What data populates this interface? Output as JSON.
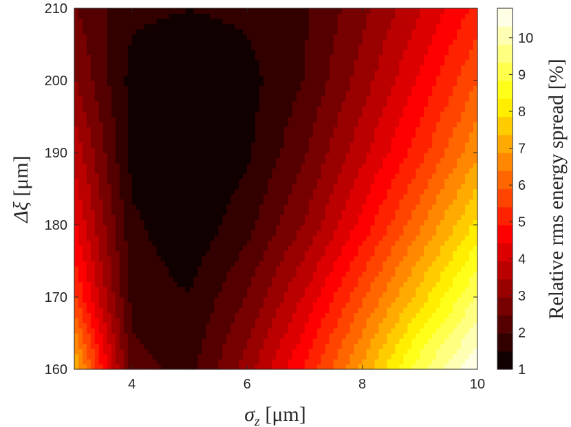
{
  "chart_data": {
    "type": "contourf",
    "xlabel": {
      "symbol": "σ",
      "subscript": "z",
      "unit": " [μm]"
    },
    "ylabel": {
      "symbol": "Δξ",
      "unit": " [μm]"
    },
    "colorbar_label": "Relative rms energy spread [%]",
    "x": [
      3,
      4,
      5,
      6,
      7,
      8,
      9,
      10
    ],
    "y": [
      160,
      170,
      180,
      190,
      200,
      210
    ],
    "z": [
      [
        7.5,
        2.2,
        1.8,
        3.2,
        5.0,
        7.0,
        9.2,
        10.8
      ],
      [
        5.5,
        1.8,
        1.5,
        2.5,
        4.0,
        5.8,
        7.6,
        9.4
      ],
      [
        4.5,
        1.6,
        1.1,
        1.8,
        3.0,
        4.6,
        6.3,
        8.0
      ],
      [
        3.8,
        1.3,
        1.0,
        1.4,
        2.4,
        3.8,
        5.2,
        6.8
      ],
      [
        3.0,
        1.3,
        1.0,
        1.3,
        2.0,
        3.2,
        4.5,
        5.9
      ],
      [
        2.5,
        1.6,
        1.5,
        1.6,
        1.9,
        2.8,
        3.9,
        5.1
      ]
    ],
    "xlim": [
      3,
      10
    ],
    "ylim": [
      160,
      210
    ],
    "xticks": [
      4,
      6,
      8,
      10
    ],
    "yticks": [
      160,
      170,
      180,
      190,
      200,
      210
    ],
    "colormap": "hot",
    "contour_levels": 20,
    "clim": [
      1,
      10.8
    ],
    "cticks": [
      1,
      2,
      3,
      4,
      5,
      6,
      7,
      8,
      9,
      10
    ]
  }
}
